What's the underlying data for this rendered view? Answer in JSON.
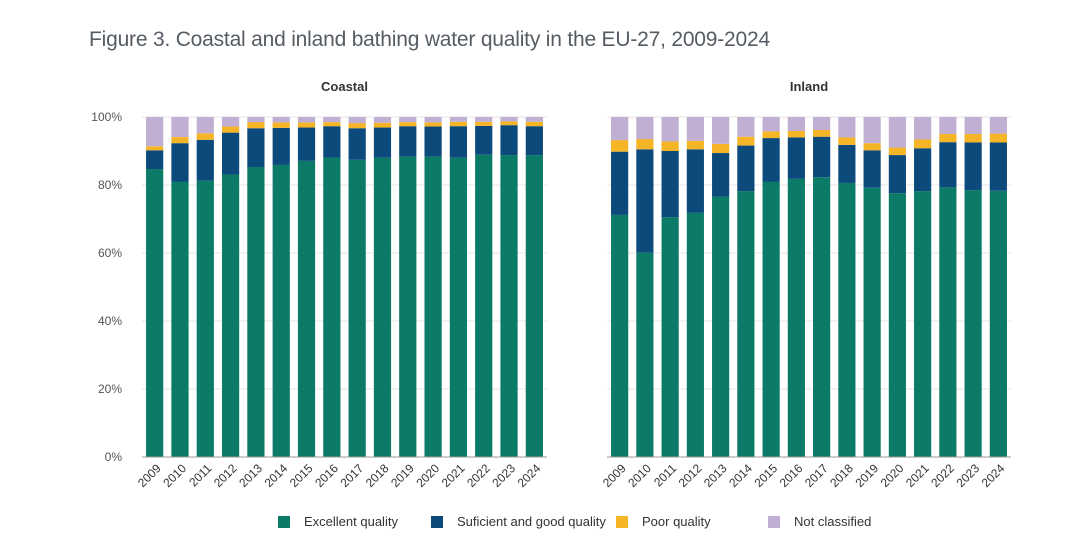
{
  "title": "Figure 3. Coastal and inland bathing water quality in the EU-27, 2009-2024",
  "colors": {
    "excellent": "#0b7a66",
    "sufficient": "#0c4a7c",
    "poor": "#f6b526",
    "not_classified": "#c0aed3"
  },
  "chart_data": [
    {
      "type": "bar",
      "stacked": true,
      "title": "Coastal",
      "categories": [
        "2009",
        "2010",
        "2011",
        "2012",
        "2013",
        "2014",
        "2015",
        "2016",
        "2017",
        "2018",
        "2019",
        "2020",
        "2021",
        "2022",
        "2023",
        "2024"
      ],
      "ylim": [
        0,
        100
      ],
      "yticks": [
        "0%",
        "20%",
        "40%",
        "60%",
        "80%",
        "100%"
      ],
      "series": [
        {
          "name": "Excellent quality",
          "values": [
            84.7,
            80.9,
            81.3,
            83.1,
            85.3,
            85.9,
            87.1,
            88.1,
            87.4,
            88.0,
            88.4,
            88.4,
            88.0,
            88.9,
            88.8,
            88.8
          ]
        },
        {
          "name": "Suficient and good quality",
          "values": [
            5.5,
            11.4,
            12.0,
            12.3,
            11.4,
            10.9,
            9.8,
            9.2,
            9.3,
            8.9,
            8.9,
            8.8,
            9.3,
            8.5,
            8.8,
            8.5
          ]
        },
        {
          "name": "Poor quality",
          "values": [
            1.2,
            1.8,
            1.9,
            1.8,
            1.8,
            1.6,
            1.5,
            1.2,
            1.5,
            1.4,
            1.2,
            1.2,
            1.3,
            1.2,
            1.1,
            1.3
          ]
        },
        {
          "name": "Not classified",
          "values": [
            8.6,
            5.9,
            4.8,
            2.8,
            1.5,
            1.6,
            1.6,
            1.5,
            1.8,
            1.7,
            1.5,
            1.6,
            1.4,
            1.4,
            1.3,
            1.4
          ]
        }
      ]
    },
    {
      "type": "bar",
      "stacked": true,
      "title": "Inland",
      "categories": [
        "2009",
        "2010",
        "2011",
        "2012",
        "2013",
        "2014",
        "2015",
        "2016",
        "2017",
        "2018",
        "2019",
        "2020",
        "2021",
        "2022",
        "2023",
        "2024"
      ],
      "ylim": [
        0,
        100
      ],
      "yticks": [
        "0%",
        "20%",
        "40%",
        "60%",
        "80%",
        "100%"
      ],
      "series": [
        {
          "name": "Excellent quality",
          "values": [
            71.2,
            60.1,
            70.5,
            71.8,
            76.6,
            78.2,
            80.9,
            81.8,
            82.3,
            80.6,
            79.2,
            77.6,
            78.2,
            79.3,
            78.5,
            78.3
          ]
        },
        {
          "name": "Suficient and good quality",
          "values": [
            18.6,
            30.4,
            19.5,
            18.7,
            12.8,
            13.4,
            12.9,
            12.2,
            11.9,
            11.2,
            11.0,
            11.2,
            12.6,
            13.3,
            14.0,
            14.2
          ]
        },
        {
          "name": "Poor quality",
          "values": [
            3.4,
            3.0,
            2.8,
            2.5,
            2.7,
            2.6,
            2.0,
            1.9,
            2.0,
            2.2,
            2.1,
            2.2,
            2.6,
            2.4,
            2.5,
            2.6
          ]
        },
        {
          "name": "Not classified",
          "values": [
            6.8,
            6.5,
            7.2,
            7.0,
            7.9,
            5.8,
            4.2,
            4.1,
            3.8,
            6.0,
            7.7,
            9.0,
            6.6,
            5.0,
            5.0,
            4.9
          ]
        }
      ]
    }
  ]
}
